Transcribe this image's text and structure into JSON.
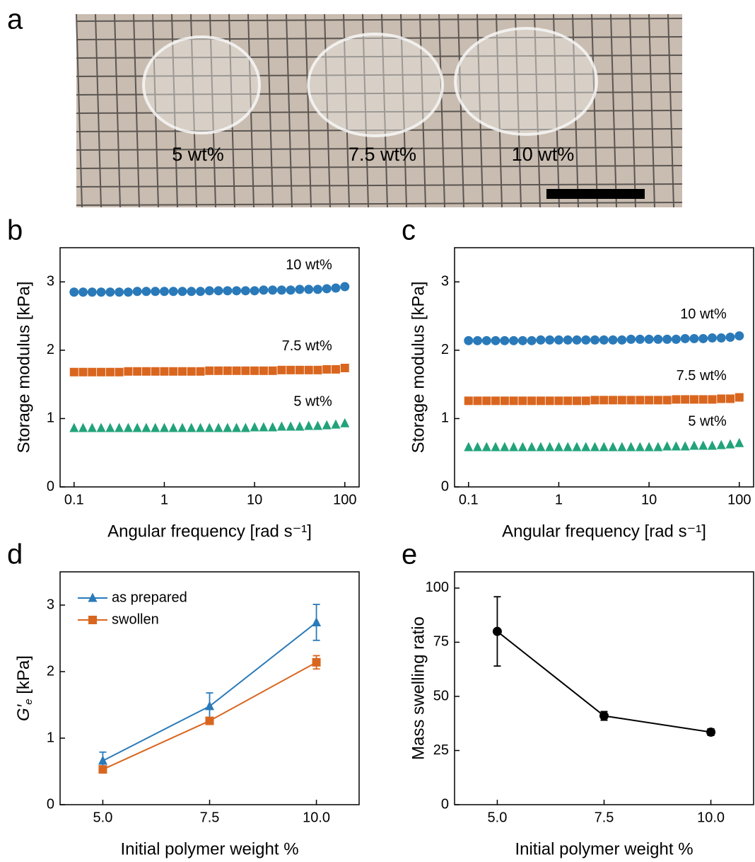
{
  "chart_data": [
    {
      "type": "image",
      "panel": "a",
      "labels": [
        "5 wt%",
        "7.5 wt%",
        "10 wt%"
      ]
    },
    {
      "type": "scatter",
      "panel": "b",
      "xscale": "log",
      "xlim": [
        0.07,
        144
      ],
      "xticks": [
        0.1,
        1,
        10,
        100
      ],
      "ylim": [
        0,
        3.5
      ],
      "yticks": [
        0,
        1,
        2,
        3
      ],
      "xlabel": "Angular frequency [rad s⁻¹]",
      "ylabel": "Storage modulus [kPa]",
      "x": [
        0.1,
        0.1259,
        0.1585,
        0.1995,
        0.2512,
        0.3162,
        0.3981,
        0.5012,
        0.631,
        0.7943,
        1,
        1.259,
        1.585,
        1.995,
        2.512,
        3.162,
        3.981,
        5.012,
        6.31,
        7.943,
        10,
        12.59,
        15.85,
        19.95,
        25.12,
        31.62,
        39.81,
        50.12,
        63.1,
        79.43,
        100
      ],
      "series": [
        {
          "name": "10 wt%",
          "color": "#2a7ab9",
          "marker": "circle",
          "values": [
            2.85,
            2.85,
            2.85,
            2.85,
            2.85,
            2.85,
            2.85,
            2.86,
            2.86,
            2.86,
            2.86,
            2.86,
            2.86,
            2.86,
            2.86,
            2.87,
            2.87,
            2.87,
            2.87,
            2.87,
            2.87,
            2.88,
            2.88,
            2.88,
            2.88,
            2.89,
            2.89,
            2.89,
            2.9,
            2.91,
            2.93
          ]
        },
        {
          "name": "7.5 wt%",
          "color": "#d9661f",
          "marker": "square",
          "values": [
            1.68,
            1.68,
            1.68,
            1.68,
            1.68,
            1.68,
            1.69,
            1.69,
            1.69,
            1.69,
            1.69,
            1.69,
            1.69,
            1.69,
            1.69,
            1.7,
            1.7,
            1.7,
            1.7,
            1.7,
            1.7,
            1.7,
            1.7,
            1.71,
            1.71,
            1.71,
            1.71,
            1.71,
            1.72,
            1.72,
            1.74
          ]
        },
        {
          "name": "5 wt%",
          "color": "#22a37a",
          "marker": "triangle",
          "values": [
            0.86,
            0.86,
            0.86,
            0.86,
            0.86,
            0.86,
            0.86,
            0.86,
            0.86,
            0.86,
            0.86,
            0.86,
            0.86,
            0.86,
            0.86,
            0.86,
            0.86,
            0.86,
            0.86,
            0.86,
            0.87,
            0.87,
            0.87,
            0.88,
            0.88,
            0.88,
            0.89,
            0.89,
            0.9,
            0.91,
            0.93
          ]
        }
      ]
    },
    {
      "type": "scatter",
      "panel": "c",
      "xscale": "log",
      "xlim": [
        0.07,
        144
      ],
      "xticks": [
        0.1,
        1,
        10,
        100
      ],
      "ylim": [
        0,
        3.5
      ],
      "yticks": [
        0,
        1,
        2,
        3
      ],
      "xlabel": "Angular frequency [rad s⁻¹]",
      "ylabel": "Storage modulus [kPa]",
      "x": [
        0.1,
        0.1259,
        0.1585,
        0.1995,
        0.2512,
        0.3162,
        0.3981,
        0.5012,
        0.631,
        0.7943,
        1,
        1.259,
        1.585,
        1.995,
        2.512,
        3.162,
        3.981,
        5.012,
        6.31,
        7.943,
        10,
        12.59,
        15.85,
        19.95,
        25.12,
        31.62,
        39.81,
        50.12,
        63.1,
        79.43,
        100
      ],
      "series": [
        {
          "name": "10 wt%",
          "color": "#2a7ab9",
          "marker": "circle",
          "values": [
            2.14,
            2.14,
            2.14,
            2.14,
            2.14,
            2.14,
            2.14,
            2.14,
            2.15,
            2.15,
            2.15,
            2.15,
            2.15,
            2.15,
            2.15,
            2.15,
            2.15,
            2.15,
            2.16,
            2.16,
            2.16,
            2.16,
            2.16,
            2.16,
            2.17,
            2.17,
            2.17,
            2.18,
            2.18,
            2.19,
            2.21
          ]
        },
        {
          "name": "7.5 wt%",
          "color": "#d9661f",
          "marker": "square",
          "values": [
            1.26,
            1.26,
            1.26,
            1.26,
            1.26,
            1.26,
            1.26,
            1.26,
            1.26,
            1.26,
            1.26,
            1.26,
            1.26,
            1.26,
            1.27,
            1.27,
            1.27,
            1.27,
            1.27,
            1.27,
            1.27,
            1.27,
            1.27,
            1.28,
            1.28,
            1.28,
            1.28,
            1.28,
            1.29,
            1.29,
            1.31
          ]
        },
        {
          "name": "5 wt%",
          "color": "#22a37a",
          "marker": "triangle",
          "values": [
            0.58,
            0.58,
            0.58,
            0.58,
            0.58,
            0.58,
            0.58,
            0.58,
            0.58,
            0.58,
            0.58,
            0.58,
            0.58,
            0.58,
            0.58,
            0.58,
            0.58,
            0.58,
            0.58,
            0.58,
            0.58,
            0.58,
            0.59,
            0.59,
            0.59,
            0.6,
            0.6,
            0.6,
            0.61,
            0.62,
            0.64
          ]
        }
      ]
    },
    {
      "type": "line",
      "panel": "d",
      "xlim": [
        4,
        11
      ],
      "xticks": [
        {
          "value": 5,
          "label": "5.0"
        },
        7.5,
        {
          "value": 10,
          "label": "10.0"
        }
      ],
      "ylim": [
        0,
        3.5
      ],
      "yticks": [
        0,
        1,
        2,
        3
      ],
      "xlabel": "Initial polymer weight %",
      "ylabel": {
        "symbol": "G′",
        "subscript": "e",
        "unit": " [kPa]"
      },
      "legend": "upper left",
      "x": [
        5,
        7.5,
        10
      ],
      "series": [
        {
          "name": "as prepared",
          "color": "#2a7ab9",
          "marker": "triangle",
          "values": [
            0.66,
            1.48,
            2.74
          ],
          "errors": [
            0.13,
            0.2,
            0.27
          ]
        },
        {
          "name": "swollen",
          "color": "#d9661f",
          "marker": "square",
          "values": [
            0.53,
            1.26,
            2.14
          ],
          "errors": [
            0.05,
            0.05,
            0.1
          ]
        }
      ]
    },
    {
      "type": "line",
      "panel": "e",
      "xlim": [
        4,
        11
      ],
      "xticks": [
        {
          "value": 5,
          "label": "5.0"
        },
        7.5,
        {
          "value": 10,
          "label": "10.0"
        }
      ],
      "ylim": [
        0,
        107.5
      ],
      "yticks": [
        0,
        25,
        50,
        75,
        100
      ],
      "xlabel": "Initial polymer weight %",
      "ylabel": "Mass swelling ratio",
      "x": [
        5,
        7.5,
        10
      ],
      "series": [
        {
          "color": "#000000",
          "marker": "circle",
          "values": [
            80,
            41,
            33.5
          ],
          "errors": [
            16,
            2,
            1.5
          ]
        }
      ]
    }
  ]
}
